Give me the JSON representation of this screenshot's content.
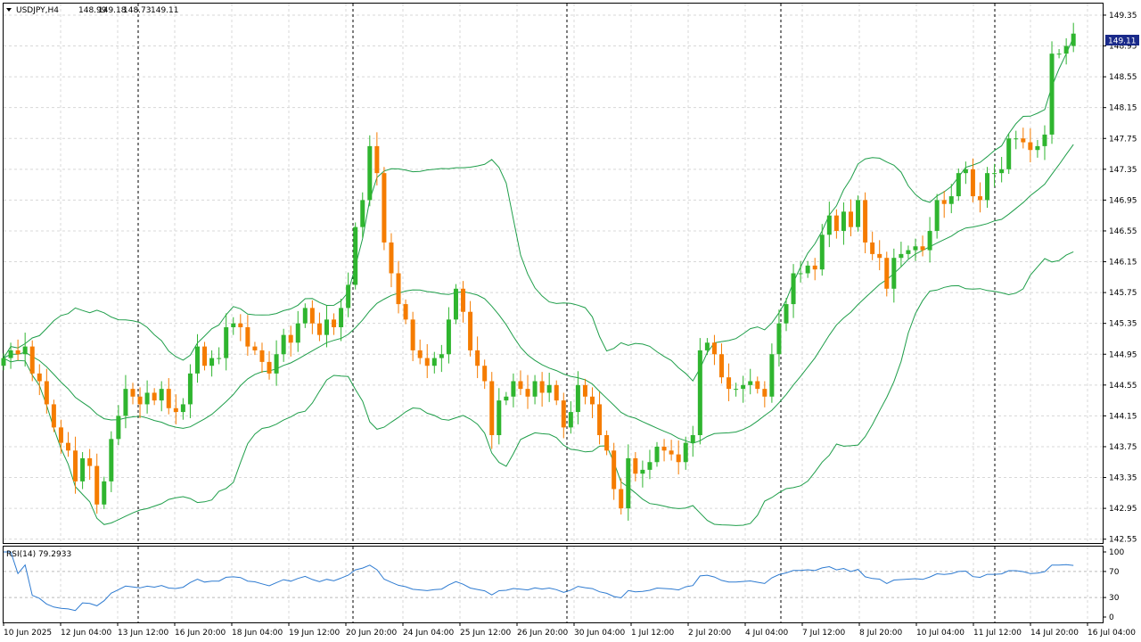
{
  "symbol": "USDJPY,H4",
  "ohlc": {
    "open": "148.99",
    "high": "149.18",
    "low": "148.73",
    "close": "149.11"
  },
  "current_price_label": "149.11",
  "rsi_label": "RSI(14) 79.2933",
  "colors": {
    "bull": "#2fb52f",
    "bear": "#f57c00",
    "band": "#1f9e4a",
    "rsi": "#2e7bd1",
    "price_tag": "#1a2a8a",
    "grid": "#d8d8d8"
  },
  "chart_data": [
    {
      "type": "candlestick",
      "title": "USDJPY,H4",
      "ylim": [
        142.5,
        149.5
      ],
      "y_ticks": [
        "149.35",
        "148.95",
        "148.55",
        "148.15",
        "147.75",
        "147.35",
        "146.95",
        "146.55",
        "146.15",
        "145.75",
        "145.35",
        "144.95",
        "144.55",
        "144.15",
        "143.75",
        "143.35",
        "142.95",
        "142.55"
      ],
      "x_ticks": [
        "10 Jun 2025",
        "12 Jun 04:00",
        "13 Jun 12:00",
        "16 Jun 20:00",
        "18 Jun 04:00",
        "19 Jun 12:00",
        "20 Jun 20:00",
        "24 Jun 04:00",
        "25 Jun 12:00",
        "26 Jun 20:00",
        "30 Jun 04:00",
        "1 Jul 12:00",
        "2 Jul 20:00",
        "4 Jul 04:00",
        "7 Jul 12:00",
        "8 Jul 20:00",
        "10 Jul 04:00",
        "11 Jul 12:00",
        "14 Jul 20:00",
        "16 Jul 04:00"
      ],
      "close": [
        144.9,
        145.0,
        144.95,
        145.05,
        144.7,
        144.6,
        144.3,
        144.0,
        143.8,
        143.7,
        143.3,
        143.6,
        143.5,
        143.0,
        143.3,
        143.85,
        144.15,
        144.5,
        144.4,
        144.3,
        144.45,
        144.35,
        144.5,
        144.25,
        144.2,
        144.3,
        144.7,
        145.05,
        144.8,
        144.9,
        144.9,
        145.3,
        145.35,
        145.3,
        145.05,
        145.0,
        144.85,
        144.7,
        144.95,
        145.2,
        145.1,
        145.35,
        145.55,
        145.35,
        145.2,
        145.4,
        145.3,
        145.55,
        145.85,
        146.6,
        146.95,
        147.65,
        147.3,
        146.4,
        146.0,
        145.6,
        145.4,
        145.0,
        144.9,
        144.8,
        144.9,
        144.95,
        145.4,
        145.8,
        145.5,
        145.0,
        144.8,
        144.6,
        143.9,
        144.35,
        144.4,
        144.6,
        144.5,
        144.4,
        144.6,
        144.45,
        144.55,
        144.35,
        144.0,
        144.2,
        144.55,
        144.4,
        144.3,
        143.9,
        143.7,
        143.2,
        142.95,
        143.6,
        143.4,
        143.45,
        143.55,
        143.75,
        143.7,
        143.65,
        143.55,
        143.8,
        143.9,
        145.0,
        145.1,
        144.95,
        144.65,
        144.5,
        144.5,
        144.55,
        144.6,
        144.5,
        144.4,
        144.95,
        145.35,
        145.6,
        146.0,
        146.0,
        146.1,
        146.05,
        146.5,
        146.75,
        146.55,
        146.8,
        146.6,
        146.95,
        146.4,
        146.25,
        146.2,
        145.8,
        146.2,
        146.25,
        146.3,
        146.35,
        146.3,
        146.55,
        146.95,
        146.9,
        147.0,
        147.3,
        147.35,
        147.0,
        146.95,
        147.3,
        147.3,
        147.35,
        147.75,
        147.75,
        147.7,
        147.6,
        147.65,
        147.8,
        148.85,
        148.85,
        148.95,
        149.11
      ],
      "rsi": {
        "ylim": [
          0,
          100
        ],
        "levels": [
          70,
          30
        ],
        "ticks": [
          "100",
          "70",
          "30",
          "0"
        ],
        "last": 79.2933
      }
    }
  ]
}
